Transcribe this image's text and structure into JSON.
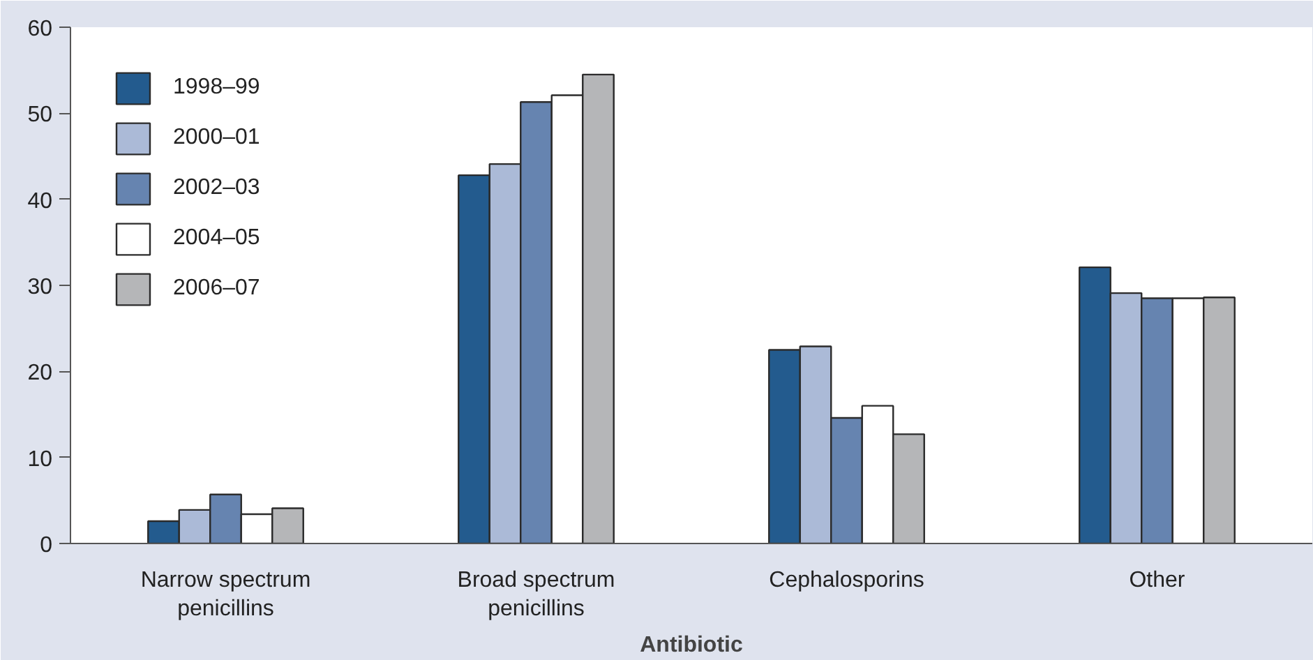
{
  "chart_data": {
    "type": "bar",
    "xlabel": "Antibiotic",
    "categories": [
      "Narrow spectrum penicillins",
      "Broad spectrum penicillins",
      "Cephalosporins",
      "Other"
    ],
    "series": [
      {
        "name": "1998–99",
        "color": "#235b8e",
        "values": [
          2.6,
          42.8,
          22.5,
          32.1
        ]
      },
      {
        "name": "2000–01",
        "color": "#abbad7",
        "values": [
          3.9,
          44.1,
          22.9,
          29.1
        ]
      },
      {
        "name": "2002–03",
        "color": "#6684b0",
        "values": [
          5.7,
          51.3,
          14.6,
          28.5
        ]
      },
      {
        "name": "2004–05",
        "color": "#ffffff",
        "values": [
          3.4,
          52.1,
          16.0,
          28.5
        ]
      },
      {
        "name": "2006–07",
        "color": "#b5b6b8",
        "values": [
          4.1,
          54.5,
          12.7,
          28.6
        ]
      }
    ],
    "ylim": [
      0,
      60
    ],
    "yticks": [
      0,
      10,
      20,
      30,
      40,
      50,
      60
    ],
    "grid": false,
    "legend": "top left"
  }
}
